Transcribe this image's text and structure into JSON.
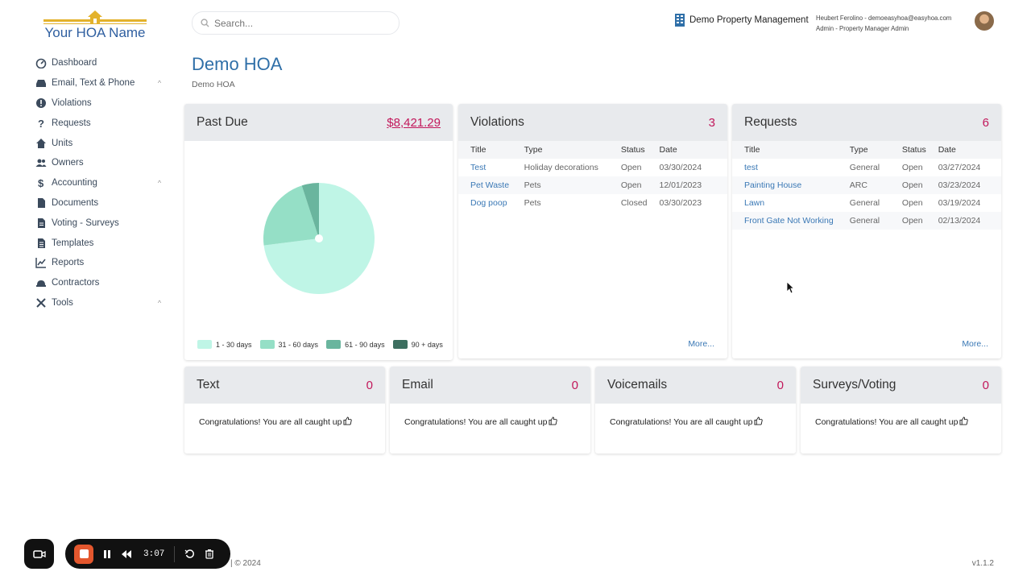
{
  "logo": {
    "text": "Your HOA Name",
    "color": "#2f5fa0",
    "accent": "#e3b22c"
  },
  "sidebar": {
    "items": [
      {
        "label": "Dashboard",
        "icon": "dashboard-icon",
        "has_chevron": false
      },
      {
        "label": "Email, Text & Phone",
        "icon": "inbox-icon",
        "has_chevron": true
      },
      {
        "label": "Violations",
        "icon": "exclamation-icon",
        "has_chevron": false
      },
      {
        "label": "Requests",
        "icon": "question-icon",
        "has_chevron": false
      },
      {
        "label": "Units",
        "icon": "home-icon",
        "has_chevron": false
      },
      {
        "label": "Owners",
        "icon": "users-icon",
        "has_chevron": false
      },
      {
        "label": "Accounting",
        "icon": "dollar-icon",
        "has_chevron": true
      },
      {
        "label": "Documents",
        "icon": "file-icon",
        "has_chevron": false
      },
      {
        "label": "Voting - Surveys",
        "icon": "file-lines-icon",
        "has_chevron": false
      },
      {
        "label": "Templates",
        "icon": "file-text-icon",
        "has_chevron": false
      },
      {
        "label": "Reports",
        "icon": "chart-line-icon",
        "has_chevron": false
      },
      {
        "label": "Contractors",
        "icon": "hard-hat-icon",
        "has_chevron": false
      },
      {
        "label": "Tools",
        "icon": "tools-icon",
        "has_chevron": true
      }
    ],
    "chevron": "^"
  },
  "header": {
    "search_placeholder": "Search...",
    "org_name": "Demo Property Management",
    "user_line1": "Heubert Ferolino - demoeasyhoa@easyhoa.com",
    "user_line2": "Admin - Property Manager Admin"
  },
  "page": {
    "title": "Demo HOA",
    "subtitle": "Demo HOA"
  },
  "past_due": {
    "title": "Past Due",
    "amount": "$8,421.29",
    "legend": [
      {
        "label": "1 - 30 days",
        "color": "#bff5e6"
      },
      {
        "label": "31 - 60 days",
        "color": "#95dfc6"
      },
      {
        "label": "61 - 90 days",
        "color": "#6ab59e"
      },
      {
        "label": "90 + days",
        "color": "#3d6f60"
      }
    ]
  },
  "chart_data": {
    "type": "pie",
    "categories": [
      "1 - 30 days",
      "31 - 60 days",
      "61 - 90 days",
      "90 + days"
    ],
    "values": [
      73,
      22,
      5,
      0
    ],
    "legend_position": "bottom"
  },
  "violations": {
    "title": "Violations",
    "count": "3",
    "columns": [
      "Title",
      "Type",
      "Status",
      "Date"
    ],
    "rows": [
      [
        "Test",
        "Holiday decorations",
        "Open",
        "03/30/2024"
      ],
      [
        "Pet Waste",
        "Pets",
        "Open",
        "12/01/2023"
      ],
      [
        "Dog poop",
        "Pets",
        "Closed",
        "03/30/2023"
      ]
    ],
    "more": "More..."
  },
  "requests": {
    "title": "Requests",
    "count": "6",
    "columns": [
      "Title",
      "Type",
      "Status",
      "Date"
    ],
    "rows": [
      [
        "test",
        "General",
        "Open",
        "03/27/2024"
      ],
      [
        "Painting House",
        "ARC",
        "Open",
        "03/23/2024"
      ],
      [
        "Lawn",
        "General",
        "Open",
        "03/19/2024"
      ],
      [
        "Front Gate Not Working",
        "General",
        "Open",
        "02/13/2024"
      ]
    ],
    "more": "More..."
  },
  "inbox_cards": [
    {
      "title": "Text",
      "count": "0",
      "message": "Congratulations! You are all caught up"
    },
    {
      "title": "Email",
      "count": "0",
      "message": "Congratulations! You are all caught up"
    },
    {
      "title": "Voicemails",
      "count": "0",
      "message": "Congratulations! You are all caught up"
    },
    {
      "title": "Surveys/Voting",
      "count": "0",
      "message": "Congratulations! You are all caught up"
    }
  ],
  "recorder": {
    "time": "3:07"
  },
  "footer": {
    "copyright": "| © 2024",
    "version": "v1.1.2"
  },
  "colors": {
    "accent_red": "#c2185b",
    "link_blue": "#3a78b5",
    "title_blue": "#2f6fa8"
  }
}
